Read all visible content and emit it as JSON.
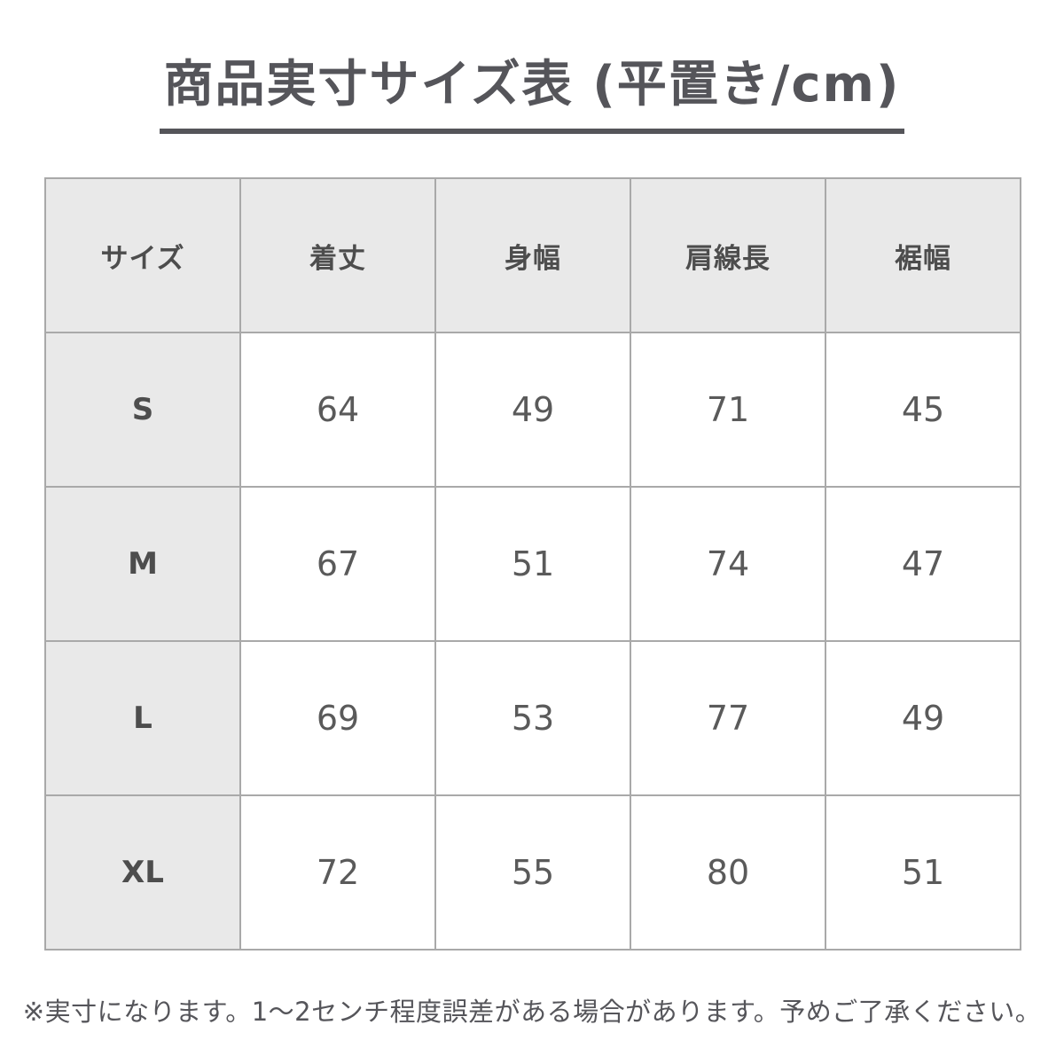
{
  "page": {
    "title": "商品実寸サイズ表 (平置き/cm)",
    "note": "※実寸になります。1〜2センチ程度誤差がある場合があります。予めご了承ください。"
  },
  "chart_data": {
    "type": "table",
    "title": "商品実寸サイズ表 (平置き/cm)",
    "unit": "cm",
    "columns": [
      "サイズ",
      "着丈",
      "身幅",
      "肩線長",
      "裾幅"
    ],
    "rows": [
      {
        "size": "S",
        "values": [
          "64",
          "49",
          "71",
          "45"
        ]
      },
      {
        "size": "M",
        "values": [
          "67",
          "51",
          "74",
          "47"
        ]
      },
      {
        "size": "L",
        "values": [
          "69",
          "53",
          "77",
          "49"
        ]
      },
      {
        "size": "XL",
        "values": [
          "72",
          "55",
          "80",
          "51"
        ]
      }
    ],
    "footnote": "※実寸になります。1〜2センチ程度誤差がある場合があります。予めご了承ください。"
  },
  "colors": {
    "text": "#55555a",
    "table_border": "#a9a9a9",
    "header_bg": "#e9e9e9",
    "cell_bg": "#ffffff"
  }
}
